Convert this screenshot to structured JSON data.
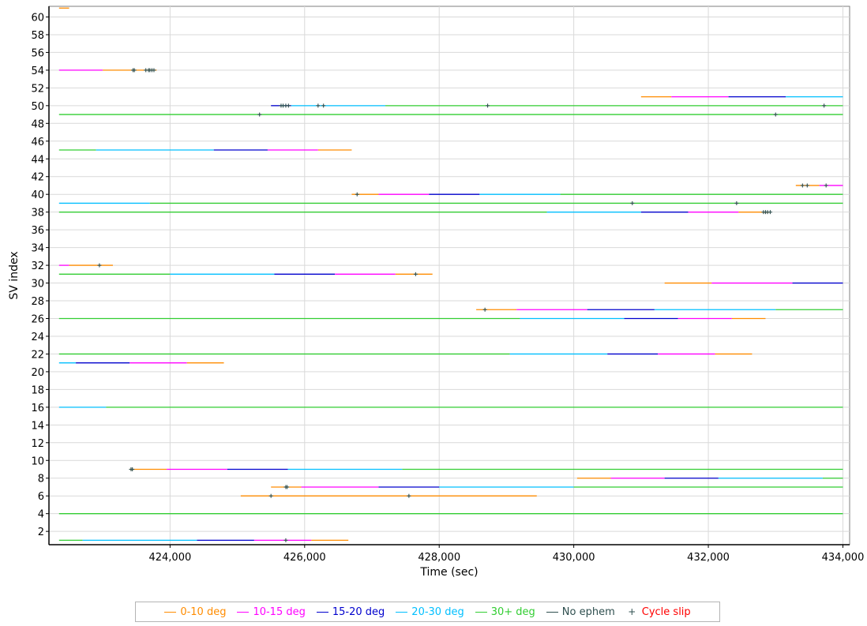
{
  "chart_data": {
    "type": "line",
    "xlabel": "Time (sec)",
    "ylabel": "SV index",
    "xlim": [
      422200,
      434100
    ],
    "ylim": [
      0.5,
      61.2
    ],
    "x_ticks": [
      424000,
      426000,
      428000,
      430000,
      432000,
      434000
    ],
    "x_tick_labels": [
      "424,000",
      "426,000",
      "428,000",
      "430,000",
      "432,000",
      "434,000"
    ],
    "y_ticks": [
      2,
      4,
      6,
      8,
      10,
      12,
      14,
      16,
      18,
      20,
      22,
      24,
      26,
      28,
      30,
      32,
      34,
      36,
      38,
      40,
      42,
      44,
      46,
      48,
      50,
      52,
      54,
      56,
      58,
      60
    ],
    "grid": true,
    "legend_position": "bottom",
    "categories": [
      {
        "name": "0-10 deg",
        "color": "#ff8c00"
      },
      {
        "name": "10-15 deg",
        "color": "#ff00ff"
      },
      {
        "name": "15-20 deg",
        "color": "#0000cd"
      },
      {
        "name": "20-30 deg",
        "color": "#00bfff"
      },
      {
        "name": "30+ deg",
        "color": "#32cd32"
      },
      {
        "name": "No ephem",
        "color": "#2f4f4f"
      },
      {
        "name": "Cycle slip",
        "color": "#ff0000",
        "marker": "+"
      }
    ],
    "tracks": [
      {
        "sv": 61,
        "segments": [
          [
            422350,
            422500,
            0
          ]
        ]
      },
      {
        "sv": 54,
        "segments": [
          [
            422350,
            423000,
            1
          ],
          [
            423000,
            423800,
            0
          ]
        ]
      },
      {
        "sv": 51,
        "segments": [
          [
            431000,
            431450,
            0
          ],
          [
            431450,
            432300,
            1
          ],
          [
            432300,
            433150,
            2
          ],
          [
            433150,
            434000,
            3
          ]
        ]
      },
      {
        "sv": 50,
        "segments": [
          [
            425500,
            425650,
            2
          ],
          [
            425650,
            425700,
            3
          ],
          [
            425700,
            425800,
            2
          ],
          [
            425800,
            427200,
            3
          ],
          [
            427200,
            434000,
            4
          ]
        ]
      },
      {
        "sv": 49,
        "segments": [
          [
            422350,
            434000,
            4
          ]
        ]
      },
      {
        "sv": 45,
        "segments": [
          [
            422350,
            422900,
            4
          ],
          [
            422900,
            424650,
            3
          ],
          [
            424650,
            425450,
            2
          ],
          [
            425450,
            426200,
            1
          ],
          [
            426200,
            426700,
            0
          ]
        ]
      },
      {
        "sv": 41,
        "segments": [
          [
            433300,
            433650,
            0
          ],
          [
            433650,
            434000,
            1
          ]
        ]
      },
      {
        "sv": 40,
        "segments": [
          [
            426700,
            427100,
            0
          ],
          [
            427100,
            427850,
            1
          ],
          [
            427850,
            428600,
            2
          ],
          [
            428600,
            429800,
            3
          ],
          [
            429800,
            434000,
            4
          ]
        ]
      },
      {
        "sv": 39,
        "segments": [
          [
            422350,
            423700,
            3
          ],
          [
            423700,
            434000,
            4
          ]
        ]
      },
      {
        "sv": 38,
        "segments": [
          [
            422350,
            429600,
            4
          ],
          [
            429600,
            431000,
            3
          ],
          [
            431000,
            431700,
            2
          ],
          [
            431700,
            432450,
            1
          ],
          [
            432450,
            432900,
            0
          ]
        ]
      },
      {
        "sv": 32,
        "segments": [
          [
            422350,
            422500,
            1
          ],
          [
            422500,
            423150,
            0
          ]
        ]
      },
      {
        "sv": 31,
        "segments": [
          [
            422350,
            424000,
            4
          ],
          [
            424000,
            425550,
            3
          ],
          [
            425550,
            426450,
            2
          ],
          [
            426450,
            427350,
            1
          ],
          [
            427350,
            427900,
            0
          ]
        ]
      },
      {
        "sv": 30,
        "segments": [
          [
            431350,
            432050,
            0
          ],
          [
            432050,
            433250,
            1
          ],
          [
            433250,
            434000,
            2
          ]
        ]
      },
      {
        "sv": 27,
        "segments": [
          [
            428550,
            429150,
            0
          ],
          [
            429150,
            430200,
            1
          ],
          [
            430200,
            431200,
            2
          ],
          [
            431200,
            433000,
            3
          ],
          [
            433000,
            434000,
            4
          ]
        ]
      },
      {
        "sv": 26,
        "segments": [
          [
            422350,
            429200,
            4
          ],
          [
            429200,
            430750,
            3
          ],
          [
            430750,
            431550,
            2
          ],
          [
            431550,
            432350,
            1
          ],
          [
            432350,
            432850,
            0
          ]
        ]
      },
      {
        "sv": 22,
        "segments": [
          [
            422350,
            429050,
            4
          ],
          [
            429050,
            430500,
            3
          ],
          [
            430500,
            431250,
            2
          ],
          [
            431250,
            432100,
            1
          ],
          [
            432100,
            432650,
            0
          ]
        ]
      },
      {
        "sv": 21,
        "segments": [
          [
            422350,
            422600,
            3
          ],
          [
            422600,
            423400,
            2
          ],
          [
            423400,
            424250,
            1
          ],
          [
            424250,
            424800,
            0
          ]
        ]
      },
      {
        "sv": 16,
        "segments": [
          [
            422350,
            423050,
            3
          ],
          [
            423050,
            434000,
            4
          ]
        ]
      },
      {
        "sv": 9,
        "segments": [
          [
            423400,
            423950,
            0
          ],
          [
            423950,
            424850,
            1
          ],
          [
            424850,
            425750,
            2
          ],
          [
            425750,
            427450,
            3
          ],
          [
            427450,
            434000,
            4
          ]
        ]
      },
      {
        "sv": 8,
        "segments": [
          [
            430050,
            430550,
            0
          ],
          [
            430550,
            431350,
            1
          ],
          [
            431350,
            432150,
            2
          ],
          [
            432150,
            433700,
            3
          ],
          [
            433700,
            434000,
            4
          ]
        ]
      },
      {
        "sv": 7,
        "segments": [
          [
            425500,
            425950,
            0
          ],
          [
            425950,
            427100,
            1
          ],
          [
            427100,
            428000,
            2
          ],
          [
            428000,
            430000,
            3
          ],
          [
            430000,
            434000,
            4
          ]
        ]
      },
      {
        "sv": 6,
        "segments": [
          [
            425050,
            429450,
            0
          ]
        ]
      },
      {
        "sv": 4,
        "segments": [
          [
            422350,
            434000,
            4
          ]
        ]
      },
      {
        "sv": 1,
        "segments": [
          [
            422350,
            422700,
            4
          ],
          [
            422700,
            424400,
            3
          ],
          [
            424400,
            425250,
            2
          ],
          [
            425250,
            426100,
            1
          ],
          [
            426100,
            426650,
            0
          ]
        ]
      }
    ],
    "cycle_slips": [
      {
        "sv": 54,
        "t": [
          423450,
          423470,
          423640,
          423680,
          423700,
          423730,
          423760
        ]
      },
      {
        "sv": 50,
        "t": [
          425650,
          425680,
          425720,
          425760,
          426200,
          426280,
          428720,
          433720
        ]
      },
      {
        "sv": 49,
        "t": [
          425330,
          433000
        ]
      },
      {
        "sv": 41,
        "t": [
          433400,
          433470,
          433750
        ]
      },
      {
        "sv": 40,
        "t": [
          426780
        ]
      },
      {
        "sv": 39,
        "t": [
          430870,
          432420
        ]
      },
      {
        "sv": 38,
        "t": [
          432820,
          432850,
          432880,
          432920
        ]
      },
      {
        "sv": 32,
        "t": [
          422950
        ]
      },
      {
        "sv": 31,
        "t": [
          427650
        ]
      },
      {
        "sv": 27,
        "t": [
          428680
        ]
      },
      {
        "sv": 9,
        "t": [
          423420,
          423440
        ]
      },
      {
        "sv": 7,
        "t": [
          425720,
          425740
        ]
      },
      {
        "sv": 6,
        "t": [
          425500,
          427550
        ]
      },
      {
        "sv": 1,
        "t": [
          425720
        ]
      }
    ]
  }
}
